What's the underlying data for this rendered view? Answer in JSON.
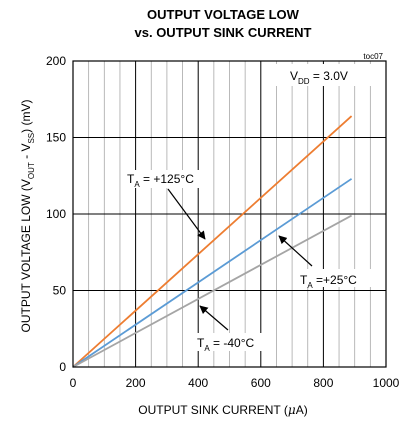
{
  "chart_data": {
    "type": "line",
    "title": "OUTPUT VOLTAGE LOW",
    "subtitle": "vs. OUTPUT SINK CURRENT",
    "tag": "toc07",
    "xlabel": "OUTPUT SINK CURRENT (μA)",
    "ylabel": "OUTPUT VOLTAGE LOW (V_OUT - V_SS) (mV)",
    "xlim": [
      0,
      1000
    ],
    "ylim": [
      0,
      200
    ],
    "x_ticks": [
      0,
      200,
      400,
      600,
      800,
      1000
    ],
    "y_ticks": [
      0,
      50,
      100,
      150,
      200
    ],
    "grid": true,
    "condition": "V_DD = 3.0V",
    "series": [
      {
        "name": "T_A = +125°C",
        "label_main": "T",
        "label_sub": "A",
        "label_rest": " = +125°C",
        "color": "#ED7D31",
        "x": [
          0,
          890
        ],
        "y": [
          0,
          164
        ]
      },
      {
        "name": "T_A = +25°C",
        "label_main": "T",
        "label_sub": "A",
        "label_rest": " =+25°C",
        "color": "#5B9BD5",
        "x": [
          0,
          890
        ],
        "y": [
          0,
          123
        ]
      },
      {
        "name": "T_A = -40°C",
        "label_main": "T",
        "label_sub": "A",
        "label_rest": " = -40°C",
        "color": "#A5A5A5",
        "x": [
          0,
          890
        ],
        "y": [
          0,
          99
        ]
      }
    ]
  }
}
